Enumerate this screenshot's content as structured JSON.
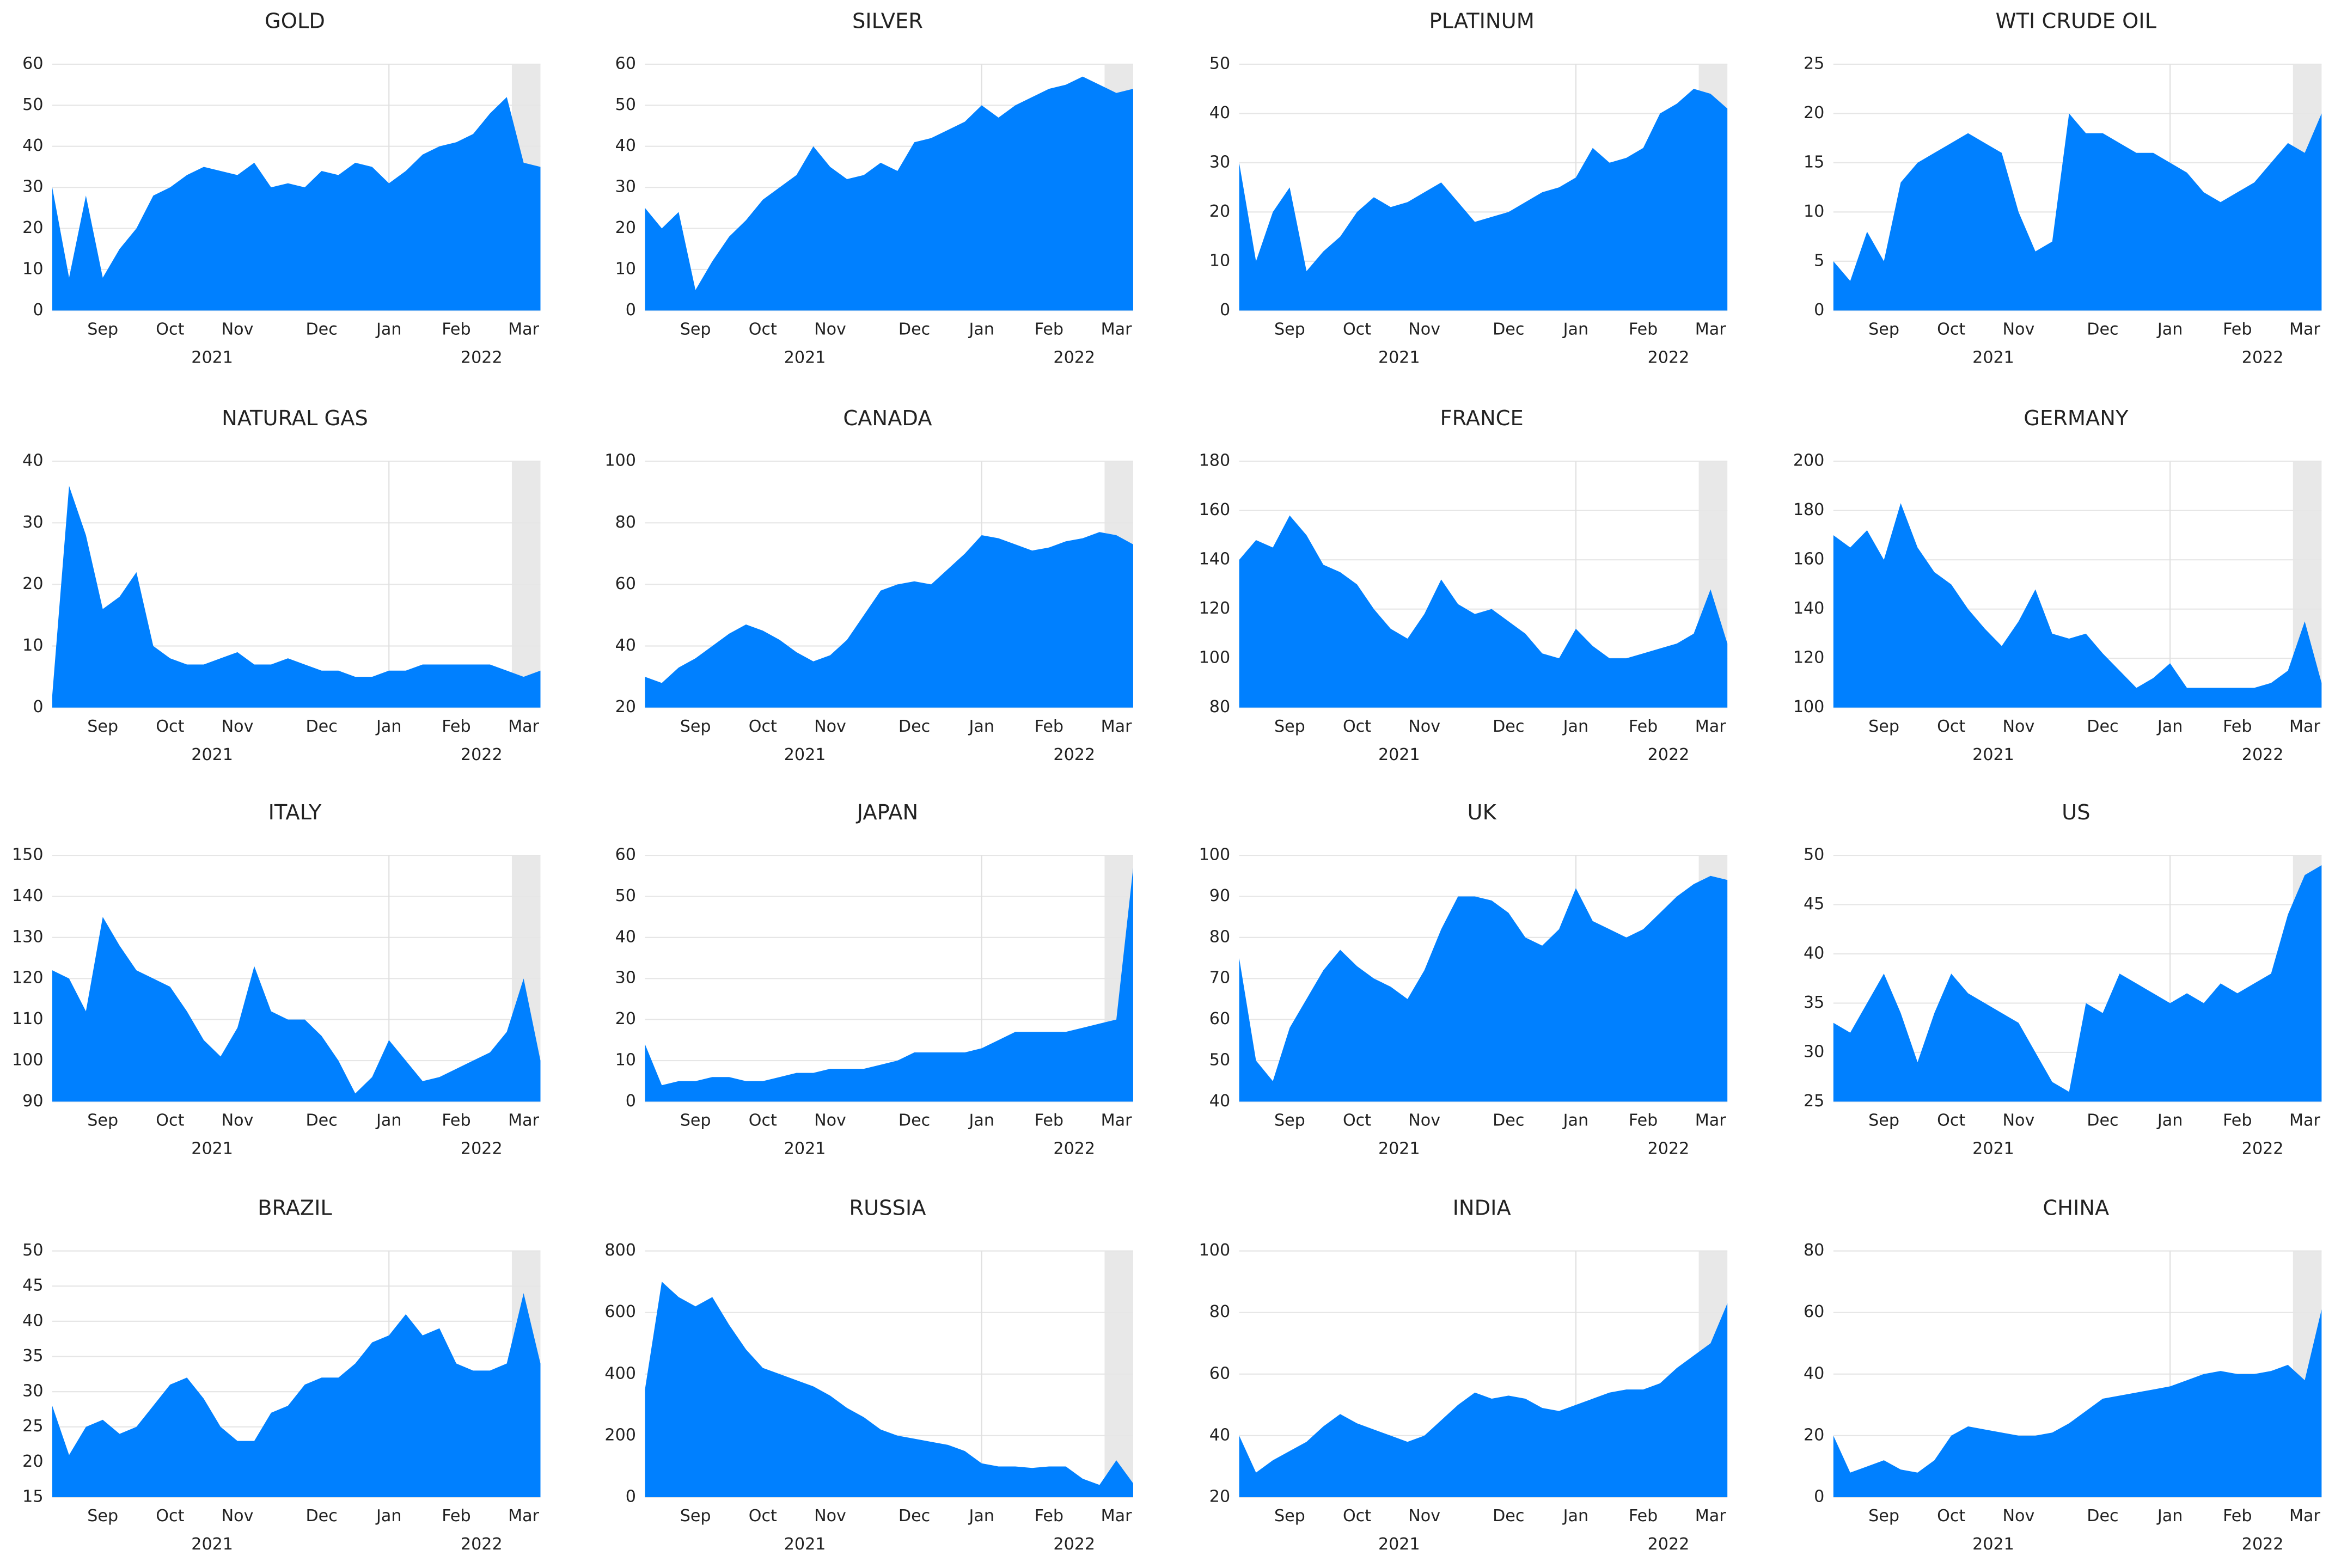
{
  "chart_data": [
    {
      "type": "area",
      "title": "GOLD",
      "color": "#0080ff",
      "ylim": [
        0,
        60
      ],
      "yticks": [
        0,
        10,
        20,
        30,
        40,
        50,
        60
      ],
      "years": [
        "2021",
        "2022"
      ],
      "categories": [
        null,
        null,
        null,
        "Sep",
        null,
        null,
        null,
        "Oct",
        null,
        null,
        null,
        "Nov",
        null,
        null,
        null,
        null,
        "Dec",
        null,
        null,
        null,
        "Jan",
        null,
        null,
        null,
        "Feb",
        null,
        null,
        null,
        "Mar",
        null
      ],
      "values": [
        30,
        8,
        28,
        8,
        15,
        20,
        28,
        30,
        33,
        35,
        34,
        33,
        36,
        30,
        31,
        30,
        34,
        33,
        36,
        35,
        31,
        34,
        38,
        40,
        41,
        43,
        48,
        52,
        36,
        35
      ]
    },
    {
      "type": "area",
      "title": "SILVER",
      "color": "#0080ff",
      "ylim": [
        0,
        60
      ],
      "yticks": [
        0,
        10,
        20,
        30,
        40,
        50,
        60
      ],
      "years": [
        "2021",
        "2022"
      ],
      "categories": [
        null,
        null,
        null,
        "Sep",
        null,
        null,
        null,
        "Oct",
        null,
        null,
        null,
        "Nov",
        null,
        null,
        null,
        null,
        "Dec",
        null,
        null,
        null,
        "Jan",
        null,
        null,
        null,
        "Feb",
        null,
        null,
        null,
        "Mar",
        null
      ],
      "values": [
        25,
        20,
        24,
        5,
        12,
        18,
        22,
        27,
        30,
        33,
        40,
        35,
        32,
        33,
        36,
        34,
        41,
        42,
        44,
        46,
        50,
        47,
        50,
        52,
        54,
        55,
        57,
        55,
        53,
        54
      ]
    },
    {
      "type": "area",
      "title": "PLATINUM",
      "color": "#0080ff",
      "ylim": [
        0,
        50
      ],
      "yticks": [
        0,
        10,
        20,
        30,
        40,
        50
      ],
      "years": [
        "2021",
        "2022"
      ],
      "categories": [
        null,
        null,
        null,
        "Sep",
        null,
        null,
        null,
        "Oct",
        null,
        null,
        null,
        "Nov",
        null,
        null,
        null,
        null,
        "Dec",
        null,
        null,
        null,
        "Jan",
        null,
        null,
        null,
        "Feb",
        null,
        null,
        null,
        "Mar",
        null
      ],
      "values": [
        30,
        10,
        20,
        25,
        8,
        12,
        15,
        20,
        23,
        21,
        22,
        24,
        26,
        22,
        18,
        19,
        20,
        22,
        24,
        25,
        27,
        33,
        30,
        31,
        33,
        40,
        42,
        45,
        44,
        41
      ]
    },
    {
      "type": "area",
      "title": "WTI CRUDE OIL",
      "color": "#0080ff",
      "ylim": [
        0,
        25
      ],
      "yticks": [
        0,
        5,
        10,
        15,
        20,
        25
      ],
      "years": [
        "2021",
        "2022"
      ],
      "categories": [
        null,
        null,
        null,
        "Sep",
        null,
        null,
        null,
        "Oct",
        null,
        null,
        null,
        "Nov",
        null,
        null,
        null,
        null,
        "Dec",
        null,
        null,
        null,
        "Jan",
        null,
        null,
        null,
        "Feb",
        null,
        null,
        null,
        "Mar",
        null
      ],
      "values": [
        5,
        3,
        8,
        5,
        13,
        15,
        16,
        17,
        18,
        17,
        16,
        10,
        6,
        7,
        20,
        18,
        18,
        17,
        16,
        16,
        15,
        14,
        12,
        11,
        12,
        13,
        15,
        17,
        16,
        20
      ]
    },
    {
      "type": "area",
      "title": "NATURAL GAS",
      "color": "#0080ff",
      "ylim": [
        0,
        40
      ],
      "yticks": [
        0,
        10,
        20,
        30,
        40
      ],
      "years": [
        "2021",
        "2022"
      ],
      "categories": [
        null,
        null,
        null,
        "Sep",
        null,
        null,
        null,
        "Oct",
        null,
        null,
        null,
        "Nov",
        null,
        null,
        null,
        null,
        "Dec",
        null,
        null,
        null,
        "Jan",
        null,
        null,
        null,
        "Feb",
        null,
        null,
        null,
        "Mar",
        null
      ],
      "values": [
        2,
        36,
        28,
        16,
        18,
        22,
        10,
        8,
        7,
        7,
        8,
        9,
        7,
        7,
        8,
        7,
        6,
        6,
        5,
        5,
        6,
        6,
        7,
        7,
        7,
        7,
        7,
        6,
        5,
        6
      ]
    },
    {
      "type": "area",
      "title": "CANADA",
      "color": "#0080ff",
      "ylim": [
        20,
        100
      ],
      "yticks": [
        20,
        40,
        60,
        80,
        100
      ],
      "years": [
        "2021",
        "2022"
      ],
      "categories": [
        null,
        null,
        null,
        "Sep",
        null,
        null,
        null,
        "Oct",
        null,
        null,
        null,
        "Nov",
        null,
        null,
        null,
        null,
        "Dec",
        null,
        null,
        null,
        "Jan",
        null,
        null,
        null,
        "Feb",
        null,
        null,
        null,
        "Mar",
        null
      ],
      "values": [
        30,
        28,
        33,
        36,
        40,
        44,
        47,
        45,
        42,
        38,
        35,
        37,
        42,
        50,
        58,
        60,
        61,
        60,
        65,
        70,
        76,
        75,
        73,
        71,
        72,
        74,
        75,
        77,
        76,
        73
      ]
    },
    {
      "type": "area",
      "title": "FRANCE",
      "color": "#0080ff",
      "ylim": [
        80,
        180
      ],
      "yticks": [
        80,
        100,
        120,
        140,
        160,
        180
      ],
      "years": [
        "2021",
        "2022"
      ],
      "categories": [
        null,
        null,
        null,
        "Sep",
        null,
        null,
        null,
        "Oct",
        null,
        null,
        null,
        "Nov",
        null,
        null,
        null,
        null,
        "Dec",
        null,
        null,
        null,
        "Jan",
        null,
        null,
        null,
        "Feb",
        null,
        null,
        null,
        "Mar",
        null
      ],
      "values": [
        140,
        148,
        145,
        158,
        150,
        138,
        135,
        130,
        120,
        112,
        108,
        118,
        132,
        122,
        118,
        120,
        115,
        110,
        102,
        100,
        112,
        105,
        100,
        100,
        102,
        104,
        106,
        110,
        128,
        106
      ]
    },
    {
      "type": "area",
      "title": "GERMANY",
      "color": "#0080ff",
      "ylim": [
        100,
        200
      ],
      "yticks": [
        100,
        120,
        140,
        160,
        180,
        200
      ],
      "years": [
        "2021",
        "2022"
      ],
      "categories": [
        null,
        null,
        null,
        "Sep",
        null,
        null,
        null,
        "Oct",
        null,
        null,
        null,
        "Nov",
        null,
        null,
        null,
        null,
        "Dec",
        null,
        null,
        null,
        "Jan",
        null,
        null,
        null,
        "Feb",
        null,
        null,
        null,
        "Mar",
        null
      ],
      "values": [
        170,
        165,
        172,
        160,
        183,
        165,
        155,
        150,
        140,
        132,
        125,
        135,
        148,
        130,
        128,
        130,
        122,
        115,
        108,
        112,
        118,
        108,
        108,
        108,
        108,
        108,
        110,
        115,
        135,
        110
      ]
    },
    {
      "type": "area",
      "title": "ITALY",
      "color": "#0080ff",
      "ylim": [
        90,
        150
      ],
      "yticks": [
        90,
        100,
        110,
        120,
        130,
        140,
        150
      ],
      "years": [
        "2021",
        "2022"
      ],
      "categories": [
        null,
        null,
        null,
        "Sep",
        null,
        null,
        null,
        "Oct",
        null,
        null,
        null,
        "Nov",
        null,
        null,
        null,
        null,
        "Dec",
        null,
        null,
        null,
        "Jan",
        null,
        null,
        null,
        "Feb",
        null,
        null,
        null,
        "Mar",
        null
      ],
      "values": [
        122,
        120,
        112,
        135,
        128,
        122,
        120,
        118,
        112,
        105,
        101,
        108,
        123,
        112,
        110,
        110,
        106,
        100,
        92,
        96,
        105,
        100,
        95,
        96,
        98,
        100,
        102,
        107,
        120,
        100
      ]
    },
    {
      "type": "area",
      "title": "JAPAN",
      "color": "#0080ff",
      "ylim": [
        0,
        60
      ],
      "yticks": [
        0,
        10,
        20,
        30,
        40,
        50,
        60
      ],
      "years": [
        "2021",
        "2022"
      ],
      "categories": [
        null,
        null,
        null,
        "Sep",
        null,
        null,
        null,
        "Oct",
        null,
        null,
        null,
        "Nov",
        null,
        null,
        null,
        null,
        "Dec",
        null,
        null,
        null,
        "Jan",
        null,
        null,
        null,
        "Feb",
        null,
        null,
        null,
        "Mar",
        null
      ],
      "values": [
        14,
        4,
        5,
        5,
        6,
        6,
        5,
        5,
        6,
        7,
        7,
        8,
        8,
        8,
        9,
        10,
        12,
        12,
        12,
        12,
        13,
        15,
        17,
        17,
        17,
        17,
        18,
        19,
        20,
        57
      ]
    },
    {
      "type": "area",
      "title": "UK",
      "color": "#0080ff",
      "ylim": [
        40,
        100
      ],
      "yticks": [
        40,
        50,
        60,
        70,
        80,
        90,
        100
      ],
      "years": [
        "2021",
        "2022"
      ],
      "categories": [
        null,
        null,
        null,
        "Sep",
        null,
        null,
        null,
        "Oct",
        null,
        null,
        null,
        "Nov",
        null,
        null,
        null,
        null,
        "Dec",
        null,
        null,
        null,
        "Jan",
        null,
        null,
        null,
        "Feb",
        null,
        null,
        null,
        "Mar",
        null
      ],
      "values": [
        75,
        50,
        45,
        58,
        65,
        72,
        77,
        73,
        70,
        68,
        65,
        72,
        82,
        90,
        90,
        89,
        86,
        80,
        78,
        82,
        92,
        84,
        82,
        80,
        82,
        86,
        90,
        93,
        95,
        94
      ]
    },
    {
      "type": "area",
      "title": "US",
      "color": "#0080ff",
      "ylim": [
        25,
        50
      ],
      "yticks": [
        25,
        30,
        35,
        40,
        45,
        50
      ],
      "years": [
        "2021",
        "2022"
      ],
      "categories": [
        null,
        null,
        null,
        "Sep",
        null,
        null,
        null,
        "Oct",
        null,
        null,
        null,
        "Nov",
        null,
        null,
        null,
        null,
        "Dec",
        null,
        null,
        null,
        "Jan",
        null,
        null,
        null,
        "Feb",
        null,
        null,
        null,
        "Mar",
        null
      ],
      "values": [
        33,
        32,
        35,
        38,
        34,
        29,
        34,
        38,
        36,
        35,
        34,
        33,
        30,
        27,
        26,
        35,
        34,
        38,
        37,
        36,
        35,
        36,
        35,
        37,
        36,
        37,
        38,
        44,
        48,
        49
      ]
    },
    {
      "type": "area",
      "title": "BRAZIL",
      "color": "#0080ff",
      "ylim": [
        15,
        50
      ],
      "yticks": [
        15,
        20,
        25,
        30,
        35,
        40,
        45,
        50
      ],
      "years": [
        "2021",
        "2022"
      ],
      "categories": [
        null,
        null,
        null,
        "Sep",
        null,
        null,
        null,
        "Oct",
        null,
        null,
        null,
        "Nov",
        null,
        null,
        null,
        null,
        "Dec",
        null,
        null,
        null,
        "Jan",
        null,
        null,
        null,
        "Feb",
        null,
        null,
        null,
        "Mar",
        null
      ],
      "values": [
        28,
        21,
        25,
        26,
        24,
        25,
        28,
        31,
        32,
        29,
        25,
        23,
        23,
        27,
        28,
        31,
        32,
        32,
        34,
        37,
        38,
        41,
        38,
        39,
        34,
        33,
        33,
        34,
        44,
        34
      ]
    },
    {
      "type": "area",
      "title": "RUSSIA",
      "color": "#0080ff",
      "ylim": [
        0,
        800
      ],
      "yticks": [
        0,
        200,
        400,
        600,
        800
      ],
      "years": [
        "2021",
        "2022"
      ],
      "categories": [
        null,
        null,
        null,
        "Sep",
        null,
        null,
        null,
        "Oct",
        null,
        null,
        null,
        "Nov",
        null,
        null,
        null,
        null,
        "Dec",
        null,
        null,
        null,
        "Jan",
        null,
        null,
        null,
        "Feb",
        null,
        null,
        null,
        "Mar",
        null
      ],
      "values": [
        350,
        700,
        650,
        620,
        650,
        560,
        480,
        420,
        400,
        380,
        360,
        330,
        290,
        260,
        220,
        200,
        190,
        180,
        170,
        150,
        110,
        100,
        100,
        95,
        100,
        100,
        60,
        40,
        120,
        45
      ]
    },
    {
      "type": "area",
      "title": "INDIA",
      "color": "#0080ff",
      "ylim": [
        20,
        100
      ],
      "yticks": [
        20,
        40,
        60,
        80,
        100
      ],
      "years": [
        "2021",
        "2022"
      ],
      "categories": [
        null,
        null,
        null,
        "Sep",
        null,
        null,
        null,
        "Oct",
        null,
        null,
        null,
        "Nov",
        null,
        null,
        null,
        null,
        "Dec",
        null,
        null,
        null,
        "Jan",
        null,
        null,
        null,
        "Feb",
        null,
        null,
        null,
        "Mar",
        null
      ],
      "values": [
        40,
        28,
        32,
        35,
        38,
        43,
        47,
        44,
        42,
        40,
        38,
        40,
        45,
        50,
        54,
        52,
        53,
        52,
        49,
        48,
        50,
        52,
        54,
        55,
        55,
        57,
        62,
        66,
        70,
        83
      ]
    },
    {
      "type": "area",
      "title": "CHINA",
      "color": "#0080ff",
      "ylim": [
        0,
        80
      ],
      "yticks": [
        0,
        20,
        40,
        60,
        80
      ],
      "years": [
        "2021",
        "2022"
      ],
      "categories": [
        null,
        null,
        null,
        "Sep",
        null,
        null,
        null,
        "Oct",
        null,
        null,
        null,
        "Nov",
        null,
        null,
        null,
        null,
        "Dec",
        null,
        null,
        null,
        "Jan",
        null,
        null,
        null,
        "Feb",
        null,
        null,
        null,
        "Mar",
        null
      ],
      "values": [
        20,
        8,
        10,
        12,
        9,
        8,
        12,
        20,
        23,
        22,
        21,
        20,
        20,
        21,
        24,
        28,
        32,
        33,
        34,
        35,
        36,
        38,
        40,
        41,
        40,
        40,
        41,
        43,
        38,
        61
      ]
    }
  ]
}
